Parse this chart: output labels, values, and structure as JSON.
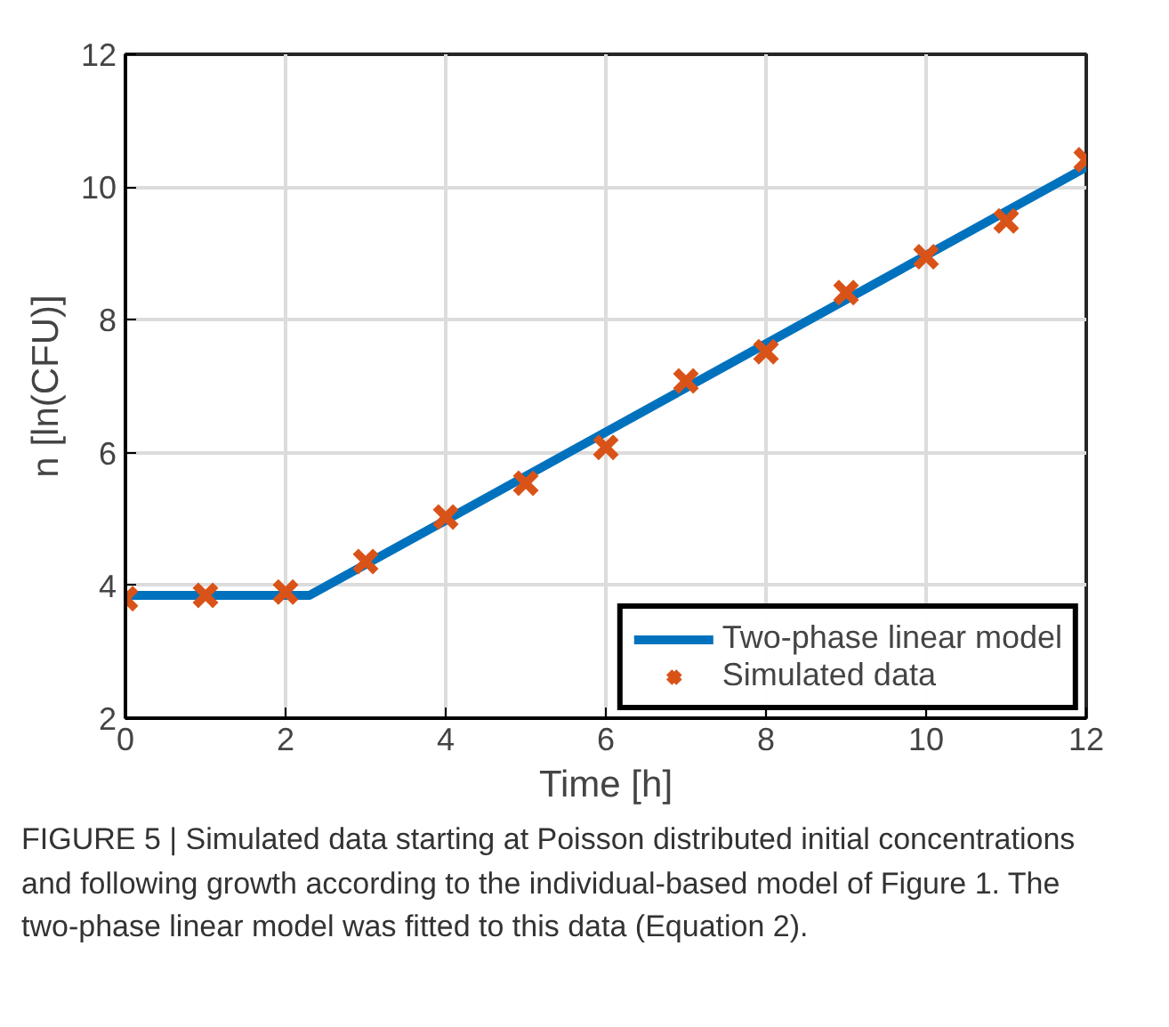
{
  "chart_data": {
    "type": "line",
    "xlabel": "Time [h]",
    "ylabel": "n [ln(CFU)]",
    "xlim": [
      0,
      12
    ],
    "xticks": [
      0,
      2,
      4,
      6,
      8,
      10,
      12
    ],
    "ylim": [
      2,
      12
    ],
    "yticks": [
      2,
      4,
      6,
      8,
      10,
      12
    ],
    "grid": true,
    "legend": "bottom right",
    "series": [
      {
        "name": "Two-phase linear model",
        "color": "#0072bd",
        "x": [
          0,
          2.3,
          12
        ],
        "values": [
          3.85,
          3.85,
          10.3
        ],
        "line_style": "solid"
      },
      {
        "name": "Simulated data",
        "type": "scatter",
        "color": "#d95319",
        "x": [
          0,
          1,
          2,
          3,
          4,
          5,
          6,
          7,
          8,
          9,
          10,
          11,
          12
        ],
        "values": [
          3.8,
          3.85,
          3.9,
          4.36,
          5.03,
          5.54,
          6.08,
          7.08,
          7.52,
          8.41,
          8.95,
          9.49,
          10.41
        ],
        "marker": "cross"
      }
    ],
    "annotations": [
      "FIGURE 5 | Simulated data starting at Poisson distributed initial concentrations and following growth according to the individual-based model of Figure 1. The two-phase linear model was fitted to this data (Equation 2)."
    ]
  }
}
